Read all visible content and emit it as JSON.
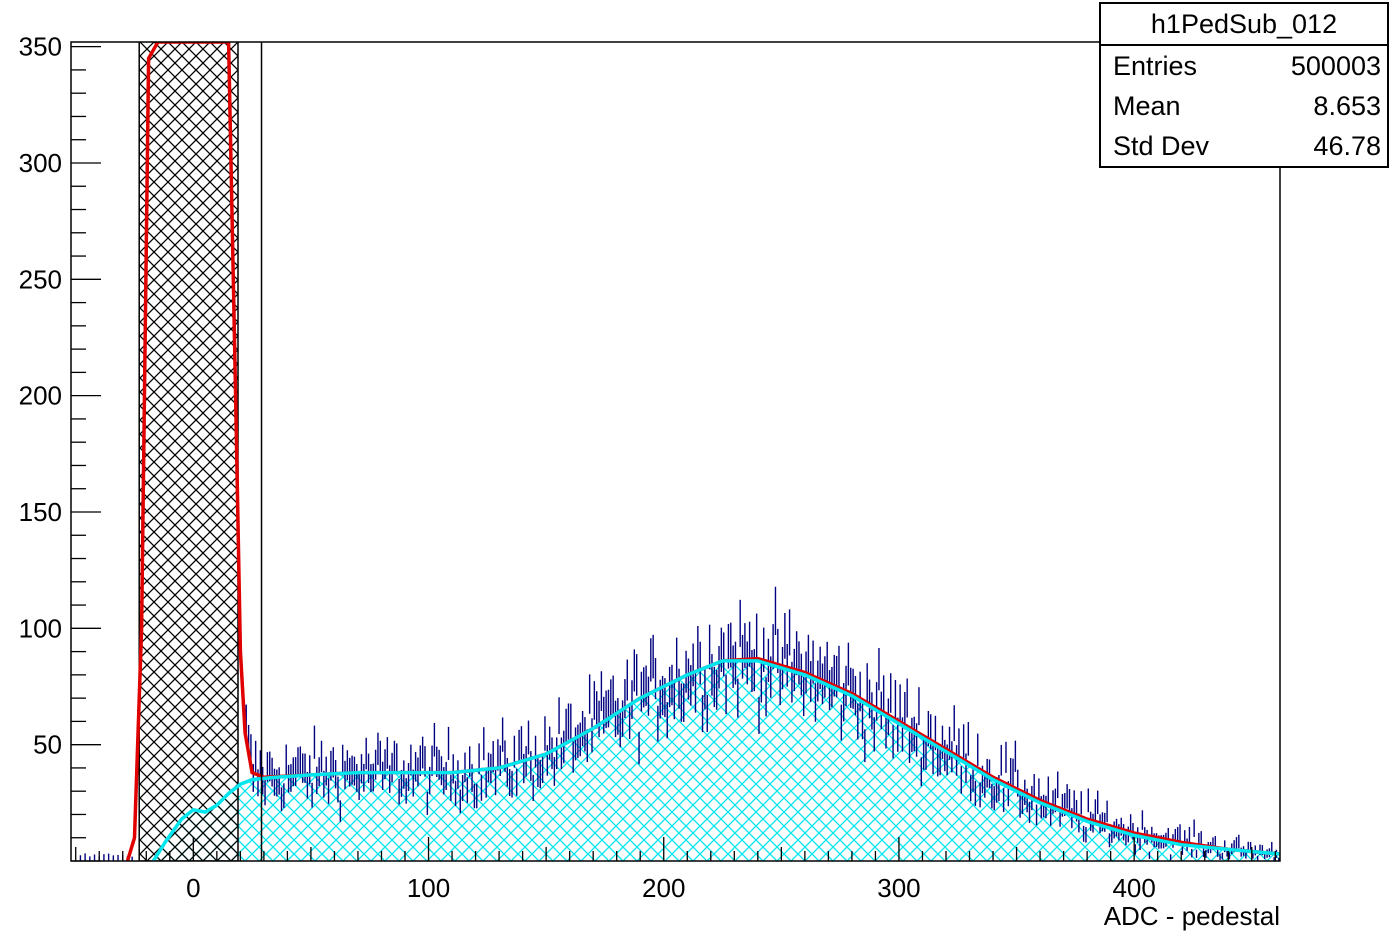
{
  "chart_data": {
    "type": "histogram",
    "histogram_name": "h1PedSub_012",
    "xlabel": "ADC - pedestal",
    "ylabel": "",
    "xlim": [
      -52,
      462
    ],
    "ylim": [
      0,
      352
    ],
    "x_ticks": [
      0,
      100,
      200,
      300,
      400
    ],
    "y_ticks": [
      50,
      100,
      150,
      200,
      250,
      300,
      350
    ],
    "x_tick_labels": [
      "0",
      "100",
      "200",
      "300",
      "400"
    ],
    "y_tick_labels": [
      "50",
      "100",
      "150",
      "200",
      "250",
      "300",
      "350"
    ],
    "cut_line_x": 29,
    "stats": {
      "title": "h1PedSub_012",
      "rows": [
        {
          "label": "Entries",
          "value": "500003"
        },
        {
          "label": "Mean",
          "value": "8.653"
        },
        {
          "label": "Std Dev",
          "value": "46.78"
        }
      ]
    },
    "pedestal_peak": {
      "name": "pedestal",
      "x_range": [
        -23,
        19
      ],
      "exceeds_ymax": true,
      "fill": "black crosshatch"
    },
    "signal_component": {
      "name": "signal",
      "points": [
        [
          -17,
          0
        ],
        [
          -12,
          8
        ],
        [
          -5,
          18
        ],
        [
          0,
          22
        ],
        [
          5,
          21
        ],
        [
          10,
          24
        ],
        [
          15,
          29
        ],
        [
          20,
          33
        ],
        [
          25,
          35
        ],
        [
          35,
          36
        ],
        [
          50,
          37
        ],
        [
          70,
          38
        ],
        [
          90,
          38
        ],
        [
          110,
          38
        ],
        [
          130,
          40
        ],
        [
          150,
          46
        ],
        [
          170,
          57
        ],
        [
          190,
          70
        ],
        [
          210,
          80
        ],
        [
          225,
          86
        ],
        [
          240,
          86
        ],
        [
          260,
          80
        ],
        [
          280,
          71
        ],
        [
          300,
          59
        ],
        [
          320,
          47
        ],
        [
          340,
          35
        ],
        [
          360,
          25
        ],
        [
          380,
          17
        ],
        [
          400,
          11
        ],
        [
          420,
          7
        ],
        [
          440,
          5
        ],
        [
          462,
          3
        ]
      ],
      "color": "#00e5ee"
    },
    "total_fit": {
      "name": "total fit",
      "points": [
        [
          -28,
          0
        ],
        [
          -25,
          10
        ],
        [
          -22,
          100
        ],
        [
          -19,
          345
        ],
        [
          -15,
          352
        ],
        [
          15,
          352
        ],
        [
          18,
          200
        ],
        [
          20,
          90
        ],
        [
          22,
          55
        ],
        [
          25,
          38
        ],
        [
          30,
          36
        ],
        [
          50,
          37
        ],
        [
          70,
          38
        ],
        [
          90,
          38
        ],
        [
          110,
          38
        ],
        [
          130,
          40
        ],
        [
          150,
          46
        ],
        [
          170,
          57
        ],
        [
          190,
          70
        ],
        [
          210,
          80
        ],
        [
          225,
          86
        ],
        [
          240,
          87
        ],
        [
          260,
          81
        ],
        [
          280,
          72
        ],
        [
          300,
          60
        ],
        [
          320,
          48
        ],
        [
          340,
          36
        ],
        [
          360,
          26
        ],
        [
          380,
          18
        ],
        [
          400,
          12
        ],
        [
          420,
          8
        ],
        [
          440,
          5
        ],
        [
          462,
          3
        ]
      ],
      "color": "#e00000"
    },
    "data_series": {
      "name": "data",
      "x_range": [
        22,
        462
      ],
      "bin_width": 1,
      "color": "#000080",
      "error_bars": true
    }
  }
}
